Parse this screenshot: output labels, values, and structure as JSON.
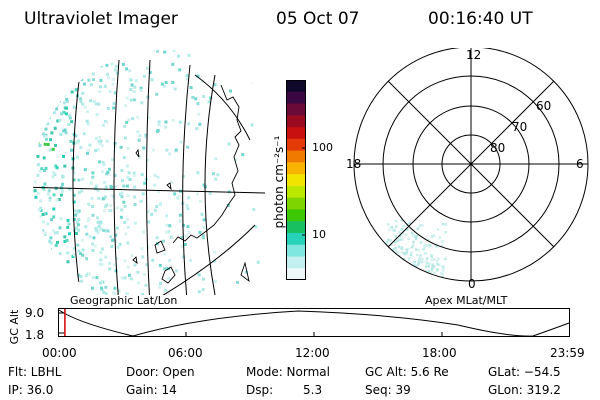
{
  "header": {
    "title": "Ultraviolet Imager",
    "date": "05 Oct 07",
    "time": "00:16:40 UT"
  },
  "colorbar": {
    "label": "photon cm⁻²s⁻¹",
    "ticks": [
      "100",
      "10"
    ],
    "colors": [
      "#10082a",
      "#3a0840",
      "#6a0a38",
      "#9a0a20",
      "#c81010",
      "#e43a08",
      "#f07a00",
      "#f8b400",
      "#f0e400",
      "#bce800",
      "#7ed400",
      "#3cc800",
      "#18c060",
      "#28d2b8",
      "#7fe6e0",
      "#c2f0f0",
      "#eef8f8"
    ]
  },
  "left_map": {
    "label": "Geographic Lat/Lon"
  },
  "right_map": {
    "label": "Apex MLat/MLT",
    "mlt_labels": {
      "top": "12",
      "left": "18",
      "right": "6",
      "bottom": "0"
    },
    "lat_labels": [
      "60",
      "70",
      "80"
    ]
  },
  "altitude_plot": {
    "axis_label": "GC Alt",
    "y_ticks": [
      "9.0",
      "1.8"
    ],
    "x_ticks": [
      "00:00",
      "06:00",
      "12:00",
      "18:00",
      "23:59"
    ],
    "current_time_fraction": 0.0116
  },
  "info": {
    "flt": "Flt: LBHL",
    "ip": "IP: 36.0",
    "door": "Door: Open",
    "gain": "Gain: 14",
    "mode": "Mode: Normal",
    "dsp": "Dsp:",
    "dsp_value": "5.3",
    "gc_alt": "GC Alt: 5.6 Re",
    "seq": "Seq: 39",
    "glat": "GLat: −54.5",
    "glon": "GLon: 319.2"
  }
}
